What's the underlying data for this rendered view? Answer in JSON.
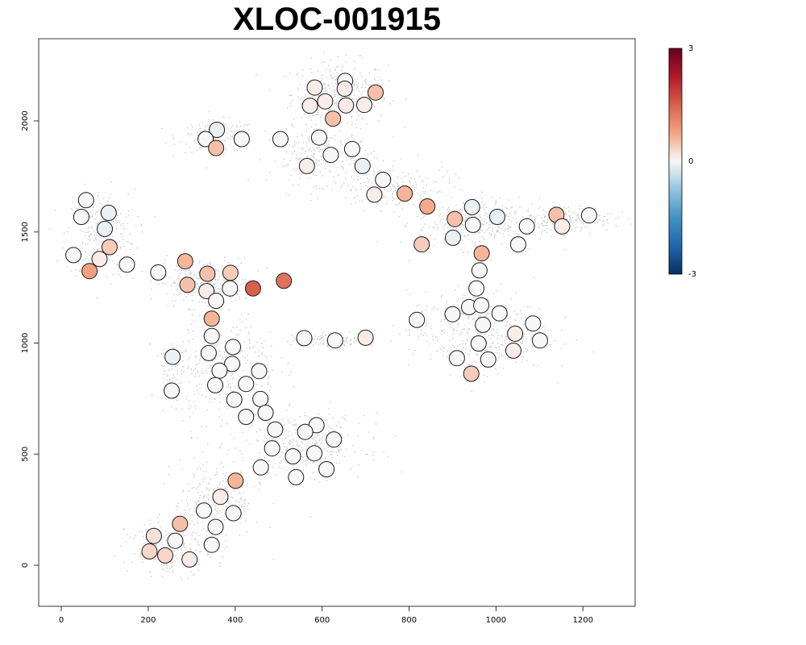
{
  "chart_data": {
    "type": "scatter",
    "title": "XLOC-001915",
    "xlabel": "",
    "ylabel": "",
    "xlim": [
      -52,
      1320
    ],
    "ylim": [
      -185,
      2370
    ],
    "x_ticks": [
      "0",
      "200",
      "400",
      "600",
      "800",
      "1000",
      "1200"
    ],
    "y_ticks": [
      "0",
      "500",
      "1000",
      "1500",
      "2000"
    ],
    "colorbar": {
      "min": -3,
      "max": 3,
      "labels": [
        "3",
        "0",
        "-3"
      ],
      "low_color": "#053061",
      "mid_color": "#f7f7f7",
      "high_color": "#67001f"
    },
    "background_color": "#c8c8c8",
    "background_clusters": [
      {
        "x": 640,
        "y": 2120,
        "sx": 55,
        "sy": 75,
        "n": 360
      },
      {
        "x": 360,
        "y": 1930,
        "sx": 45,
        "sy": 35,
        "n": 170
      },
      {
        "x": 90,
        "y": 1490,
        "sx": 40,
        "sy": 100,
        "n": 260
      },
      {
        "x": 330,
        "y": 1270,
        "sx": 55,
        "sy": 55,
        "n": 260
      },
      {
        "x": 600,
        "y": 1840,
        "sx": 60,
        "sy": 60,
        "n": 220
      },
      {
        "x": 760,
        "y": 1700,
        "sx": 70,
        "sy": 50,
        "n": 200
      },
      {
        "x": 960,
        "y": 1540,
        "sx": 70,
        "sy": 55,
        "n": 320
      },
      {
        "x": 1160,
        "y": 1560,
        "sx": 55,
        "sy": 30,
        "n": 200
      },
      {
        "x": 960,
        "y": 1050,
        "sx": 80,
        "sy": 90,
        "n": 400
      },
      {
        "x": 630,
        "y": 1015,
        "sx": 50,
        "sy": 15,
        "n": 120
      },
      {
        "x": 380,
        "y": 880,
        "sx": 60,
        "sy": 130,
        "n": 380
      },
      {
        "x": 560,
        "y": 540,
        "sx": 70,
        "sy": 70,
        "n": 340
      },
      {
        "x": 360,
        "y": 300,
        "sx": 50,
        "sy": 90,
        "n": 230
      },
      {
        "x": 250,
        "y": 80,
        "sx": 50,
        "sy": 60,
        "n": 220
      },
      {
        "x": 255,
        "y": 860,
        "sx": 15,
        "sy": 70,
        "n": 60
      }
    ],
    "points": [
      {
        "x": 653,
        "y": 2180,
        "v": 0.0
      },
      {
        "x": 583,
        "y": 2150,
        "v": 0.1
      },
      {
        "x": 652,
        "y": 2145,
        "v": 0.1
      },
      {
        "x": 723,
        "y": 2128,
        "v": 0.5
      },
      {
        "x": 607,
        "y": 2088,
        "v": 0.1
      },
      {
        "x": 572,
        "y": 2068,
        "v": 0.1
      },
      {
        "x": 655,
        "y": 2070,
        "v": 0.1
      },
      {
        "x": 697,
        "y": 2072,
        "v": 0.1
      },
      {
        "x": 625,
        "y": 2010,
        "v": 0.5
      },
      {
        "x": 358,
        "y": 1960,
        "v": -0.1
      },
      {
        "x": 332,
        "y": 1918,
        "v": 0.0
      },
      {
        "x": 415,
        "y": 1918,
        "v": 0.0
      },
      {
        "x": 504,
        "y": 1918,
        "v": 0.0
      },
      {
        "x": 593,
        "y": 1925,
        "v": 0.0
      },
      {
        "x": 356,
        "y": 1878,
        "v": 0.5
      },
      {
        "x": 669,
        "y": 1873,
        "v": 0.0
      },
      {
        "x": 620,
        "y": 1847,
        "v": 0.0
      },
      {
        "x": 565,
        "y": 1797,
        "v": 0.1
      },
      {
        "x": 693,
        "y": 1797,
        "v": -0.1
      },
      {
        "x": 740,
        "y": 1735,
        "v": 0.0
      },
      {
        "x": 720,
        "y": 1668,
        "v": 0.1
      },
      {
        "x": 790,
        "y": 1673,
        "v": 0.6
      },
      {
        "x": 842,
        "y": 1615,
        "v": 0.7
      },
      {
        "x": 57,
        "y": 1643,
        "v": 0.0
      },
      {
        "x": 109,
        "y": 1586,
        "v": -0.1
      },
      {
        "x": 46,
        "y": 1568,
        "v": 0.0
      },
      {
        "x": 100,
        "y": 1514,
        "v": -0.1
      },
      {
        "x": 111,
        "y": 1432,
        "v": 0.4
      },
      {
        "x": 28,
        "y": 1396,
        "v": 0.0
      },
      {
        "x": 88,
        "y": 1378,
        "v": 0.1
      },
      {
        "x": 65,
        "y": 1324,
        "v": 0.8
      },
      {
        "x": 151,
        "y": 1353,
        "v": 0.0
      },
      {
        "x": 223,
        "y": 1318,
        "v": 0.0
      },
      {
        "x": 285,
        "y": 1368,
        "v": 0.6
      },
      {
        "x": 336,
        "y": 1312,
        "v": 0.5
      },
      {
        "x": 389,
        "y": 1316,
        "v": 0.4
      },
      {
        "x": 290,
        "y": 1262,
        "v": 0.5
      },
      {
        "x": 334,
        "y": 1234,
        "v": 0.1
      },
      {
        "x": 388,
        "y": 1246,
        "v": 0.0
      },
      {
        "x": 441,
        "y": 1246,
        "v": 1.5
      },
      {
        "x": 512,
        "y": 1280,
        "v": 1.3
      },
      {
        "x": 356,
        "y": 1190,
        "v": 0.0
      },
      {
        "x": 346,
        "y": 1110,
        "v": 0.6
      },
      {
        "x": 346,
        "y": 1032,
        "v": 0.0
      },
      {
        "x": 945,
        "y": 1612,
        "v": -0.1
      },
      {
        "x": 1003,
        "y": 1568,
        "v": -0.1
      },
      {
        "x": 905,
        "y": 1558,
        "v": 0.5
      },
      {
        "x": 947,
        "y": 1532,
        "v": 0.0
      },
      {
        "x": 1071,
        "y": 1525,
        "v": 0.0
      },
      {
        "x": 1139,
        "y": 1577,
        "v": 0.5
      },
      {
        "x": 1152,
        "y": 1525,
        "v": 0.1
      },
      {
        "x": 1214,
        "y": 1575,
        "v": 0.0
      },
      {
        "x": 901,
        "y": 1474,
        "v": -0.1
      },
      {
        "x": 829,
        "y": 1444,
        "v": 0.4
      },
      {
        "x": 1051,
        "y": 1444,
        "v": 0.0
      },
      {
        "x": 967,
        "y": 1404,
        "v": 0.6
      },
      {
        "x": 962,
        "y": 1327,
        "v": 0.0
      },
      {
        "x": 955,
        "y": 1246,
        "v": 0.0
      },
      {
        "x": 900,
        "y": 1130,
        "v": 0.0
      },
      {
        "x": 938,
        "y": 1162,
        "v": 0.0
      },
      {
        "x": 966,
        "y": 1170,
        "v": 0.0
      },
      {
        "x": 1008,
        "y": 1134,
        "v": 0.0
      },
      {
        "x": 818,
        "y": 1104,
        "v": 0.0
      },
      {
        "x": 970,
        "y": 1082,
        "v": 0.0
      },
      {
        "x": 1085,
        "y": 1088,
        "v": 0.0
      },
      {
        "x": 1044,
        "y": 1042,
        "v": 0.1
      },
      {
        "x": 1101,
        "y": 1012,
        "v": 0.0
      },
      {
        "x": 559,
        "y": 1022,
        "v": 0.0
      },
      {
        "x": 630,
        "y": 1012,
        "v": 0.0
      },
      {
        "x": 700,
        "y": 1024,
        "v": 0.1
      },
      {
        "x": 960,
        "y": 998,
        "v": 0.0
      },
      {
        "x": 1040,
        "y": 966,
        "v": 0.1
      },
      {
        "x": 910,
        "y": 932,
        "v": 0.0
      },
      {
        "x": 982,
        "y": 926,
        "v": 0.0
      },
      {
        "x": 943,
        "y": 862,
        "v": 0.4
      },
      {
        "x": 395,
        "y": 982,
        "v": 0.0
      },
      {
        "x": 339,
        "y": 955,
        "v": 0.0
      },
      {
        "x": 256,
        "y": 938,
        "v": -0.1
      },
      {
        "x": 393,
        "y": 906,
        "v": 0.0
      },
      {
        "x": 364,
        "y": 876,
        "v": 0.0
      },
      {
        "x": 455,
        "y": 874,
        "v": 0.0
      },
      {
        "x": 425,
        "y": 816,
        "v": 0.0
      },
      {
        "x": 354,
        "y": 810,
        "v": 0.0
      },
      {
        "x": 254,
        "y": 786,
        "v": 0.0
      },
      {
        "x": 398,
        "y": 745,
        "v": 0.0
      },
      {
        "x": 458,
        "y": 748,
        "v": 0.0
      },
      {
        "x": 470,
        "y": 686,
        "v": 0.0
      },
      {
        "x": 425,
        "y": 668,
        "v": 0.0
      },
      {
        "x": 492,
        "y": 611,
        "v": 0.0
      },
      {
        "x": 587,
        "y": 630,
        "v": 0.0
      },
      {
        "x": 561,
        "y": 600,
        "v": 0.0
      },
      {
        "x": 627,
        "y": 566,
        "v": 0.0
      },
      {
        "x": 485,
        "y": 526,
        "v": 0.0
      },
      {
        "x": 533,
        "y": 490,
        "v": 0.0
      },
      {
        "x": 582,
        "y": 504,
        "v": 0.0
      },
      {
        "x": 459,
        "y": 440,
        "v": 0.0
      },
      {
        "x": 610,
        "y": 432,
        "v": 0.0
      },
      {
        "x": 540,
        "y": 396,
        "v": 0.0
      },
      {
        "x": 401,
        "y": 380,
        "v": 0.6
      },
      {
        "x": 366,
        "y": 308,
        "v": 0.1
      },
      {
        "x": 328,
        "y": 246,
        "v": 0.0
      },
      {
        "x": 396,
        "y": 234,
        "v": 0.0
      },
      {
        "x": 355,
        "y": 172,
        "v": 0.0
      },
      {
        "x": 273,
        "y": 186,
        "v": 0.5
      },
      {
        "x": 213,
        "y": 132,
        "v": 0.2
      },
      {
        "x": 262,
        "y": 110,
        "v": 0.0
      },
      {
        "x": 346,
        "y": 92,
        "v": 0.0
      },
      {
        "x": 203,
        "y": 62,
        "v": 0.3
      },
      {
        "x": 239,
        "y": 44,
        "v": 0.3
      },
      {
        "x": 295,
        "y": 26,
        "v": 0.1
      }
    ]
  }
}
